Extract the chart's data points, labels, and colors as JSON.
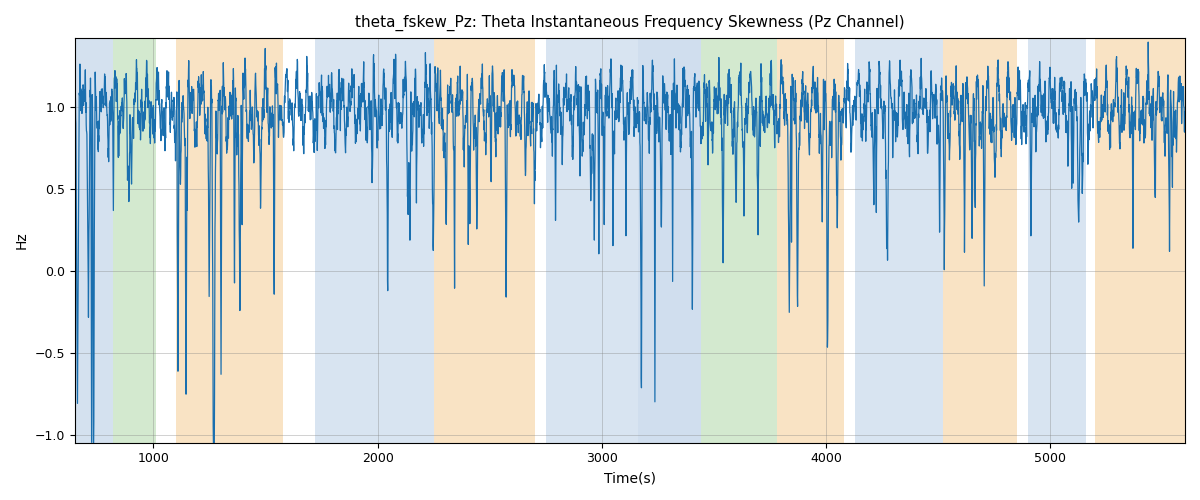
{
  "title": "theta_fskew_Pz: Theta Instantaneous Frequency Skewness (Pz Channel)",
  "xlabel": "Time(s)",
  "ylabel": "Hz",
  "xlim": [
    650,
    5600
  ],
  "ylim": [
    -1.05,
    1.42
  ],
  "line_color": "#1a6faf",
  "line_width": 0.9,
  "bg_bands": [
    {
      "xmin": 655,
      "xmax": 820,
      "color": "#aac4e0",
      "alpha": 0.5
    },
    {
      "xmin": 820,
      "xmax": 1010,
      "color": "#a8d4a0",
      "alpha": 0.5
    },
    {
      "xmin": 1100,
      "xmax": 1580,
      "color": "#f5c98a",
      "alpha": 0.5
    },
    {
      "xmin": 1720,
      "xmax": 2250,
      "color": "#aac4e0",
      "alpha": 0.45
    },
    {
      "xmin": 2250,
      "xmax": 2700,
      "color": "#f5c98a",
      "alpha": 0.5
    },
    {
      "xmin": 2750,
      "xmax": 3160,
      "color": "#aac4e0",
      "alpha": 0.45
    },
    {
      "xmin": 3160,
      "xmax": 3440,
      "color": "#aac4e0",
      "alpha": 0.55
    },
    {
      "xmin": 3440,
      "xmax": 3780,
      "color": "#a8d4a0",
      "alpha": 0.5
    },
    {
      "xmin": 3780,
      "xmax": 4080,
      "color": "#f5c98a",
      "alpha": 0.5
    },
    {
      "xmin": 4130,
      "xmax": 4520,
      "color": "#aac4e0",
      "alpha": 0.45
    },
    {
      "xmin": 4520,
      "xmax": 4850,
      "color": "#f5c98a",
      "alpha": 0.5
    },
    {
      "xmin": 4900,
      "xmax": 5160,
      "color": "#aac4e0",
      "alpha": 0.45
    },
    {
      "xmin": 5200,
      "xmax": 5600,
      "color": "#f5c98a",
      "alpha": 0.5
    }
  ],
  "yticks": [
    -1.0,
    -0.5,
    0.0,
    0.5,
    1.0
  ],
  "xticks": [
    1000,
    2000,
    3000,
    4000,
    5000
  ],
  "figsize": [
    12.0,
    5.0
  ],
  "dpi": 100
}
